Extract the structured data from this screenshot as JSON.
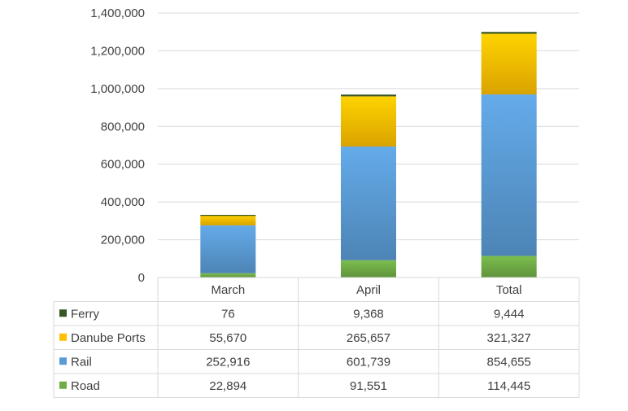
{
  "chart_data": {
    "type": "bar",
    "stacked": true,
    "data_table": true,
    "grid": true,
    "categories": [
      "March",
      "April",
      "Total"
    ],
    "ylim": [
      0,
      1400000
    ],
    "y_ticks": [
      0,
      200000,
      400000,
      600000,
      800000,
      1000000,
      1200000,
      1400000
    ],
    "y_tick_labels": [
      "0",
      "200,000",
      "400,000",
      "600,000",
      "800,000",
      "1,000,000",
      "1,200,000",
      "1,400,000"
    ],
    "series": [
      {
        "name": "Road",
        "values": [
          22894,
          91551,
          114445
        ],
        "labels": [
          "22,894",
          "91,551",
          "114,445"
        ],
        "color": "#70ad47"
      },
      {
        "name": "Rail",
        "values": [
          252916,
          601739,
          854655
        ],
        "labels": [
          "252,916",
          "601,739",
          "854,655"
        ],
        "color": "#5b9bd5"
      },
      {
        "name": "Danube Ports",
        "values": [
          55670,
          265657,
          321327
        ],
        "labels": [
          "55,670",
          "265,657",
          "321,327"
        ],
        "color": "#ffc000"
      },
      {
        "name": "Ferry",
        "values": [
          76,
          9368,
          9444
        ],
        "labels": [
          "76",
          "9,368",
          "9,444"
        ],
        "color": "#375623"
      }
    ],
    "table_row_order": [
      "Ferry",
      "Danube Ports",
      "Rail",
      "Road"
    ]
  }
}
